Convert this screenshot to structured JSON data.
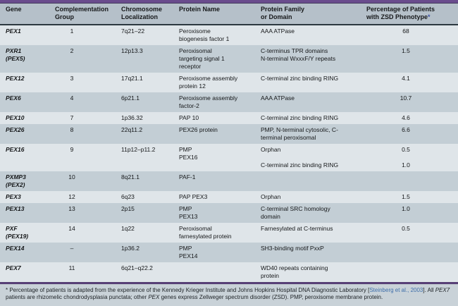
{
  "colors": {
    "accent_purple": "#6a4c8d",
    "header_bg": "#b5c0c9",
    "row_light": "#dfe5e9",
    "row_dark": "#c3ced5",
    "link_blue": "#3f6faa",
    "asterisk_blue": "#4153a5"
  },
  "table": {
    "headers": {
      "gene": "Gene",
      "group": "Complementation\nGroup",
      "chromosome": "Chromosome\nLocalization",
      "protein": "Protein Name",
      "family": "Protein Family\nor Domain",
      "pct": "Percentage of Patients\nwith ZSD Phenotype",
      "pct_asterisk": "*"
    },
    "rows": [
      {
        "gene": "PEX1",
        "group": "1",
        "chromosome": "7q21–22",
        "protein": "Peroxisome\nbiogenesis factor 1",
        "family": "AAA ATPase",
        "pct": "68"
      },
      {
        "gene": "PXR1\n(PEX5)",
        "group": "2",
        "chromosome": "12p13.3",
        "protein": "Peroxisomal\ntargeting signal 1\nreceptor",
        "family": "C-terminus TPR domains\nN-terminal WxxxF/Y repeats",
        "pct": "1.5"
      },
      {
        "gene": "PEX12",
        "group": "3",
        "chromosome": "17q21.1",
        "protein": "Peroxisome assembly\nprotein 12",
        "family": "C-terminal zinc binding RING",
        "pct": "4.1"
      },
      {
        "gene": "PEX6",
        "group": "4",
        "chromosome": "6p21.1",
        "protein": "Peroxisome assembly\nfactor-2",
        "family": "AAA ATPase",
        "pct": "10.7"
      },
      {
        "gene": "PEX10",
        "group": "7",
        "chromosome": "1p36.32",
        "protein": "PAP 10",
        "family": "C-terminal zinc binding RING",
        "pct": "4.6"
      },
      {
        "gene": "PEX26",
        "group": "8",
        "chromosome": "22q11.2",
        "protein": "PEX26 protein",
        "family": "PMP, N-terminal cytosolic, C-\nterminal peroxisomal",
        "pct": "6.6"
      },
      {
        "gene": "PEX16",
        "group": "9",
        "chromosome": "11p12–p11.2",
        "protein": "PMP\nPEX16",
        "family": "Orphan\n\nC-terminal zinc binding RING",
        "pct": "0.5\n\n1.0"
      },
      {
        "gene": "PXMP3\n(PEX2)",
        "group": "10",
        "chromosome": "8q21.1",
        "protein": "PAF-1",
        "family": "",
        "pct": ""
      },
      {
        "gene": "PEX3",
        "group": "12",
        "chromosome": "6q23",
        "protein": "PAP PEX3",
        "family": "Orphan",
        "pct": "1.5"
      },
      {
        "gene": "PEX13",
        "group": "13",
        "chromosome": "2p15",
        "protein": "PMP\nPEX13",
        "family": "C-terminal SRC homology\ndomain",
        "pct": "1.0"
      },
      {
        "gene": "PXF\n(PEX19)",
        "group": "14",
        "chromosome": "1q22",
        "protein": "Peroxisomal\nfarnesylated protein",
        "family": "Farnesylated at C-terminus",
        "pct": "0.5"
      },
      {
        "gene": "PEX14",
        "group": "–",
        "chromosome": "1p36.2",
        "protein": "PMP\nPEX14",
        "family": "SH3-binding motif PxxP",
        "pct": ""
      },
      {
        "gene": "PEX7",
        "group": "11",
        "chromosome": "6q21–q22.2",
        "protein": "",
        "family": "WD40 repeats containing\nprotein",
        "pct": ""
      }
    ]
  },
  "footnote": {
    "part1": "* Percentage of patients is adapted from the experience of the Kennedy Krieger Institute and Johns Hopkins Hospital DNA Diagnostic Laboratory [",
    "citation": "Steinberg et al., 2003",
    "part2": "]. All ",
    "gene1": "PEX7",
    "part3": " patients are rhizomelic chondrodysplasia punctata; other ",
    "gene2": "PEX",
    "part4": " genes express Zellweger spectrum disorder (ZSD). PMP, peroxisome membrane protein."
  }
}
